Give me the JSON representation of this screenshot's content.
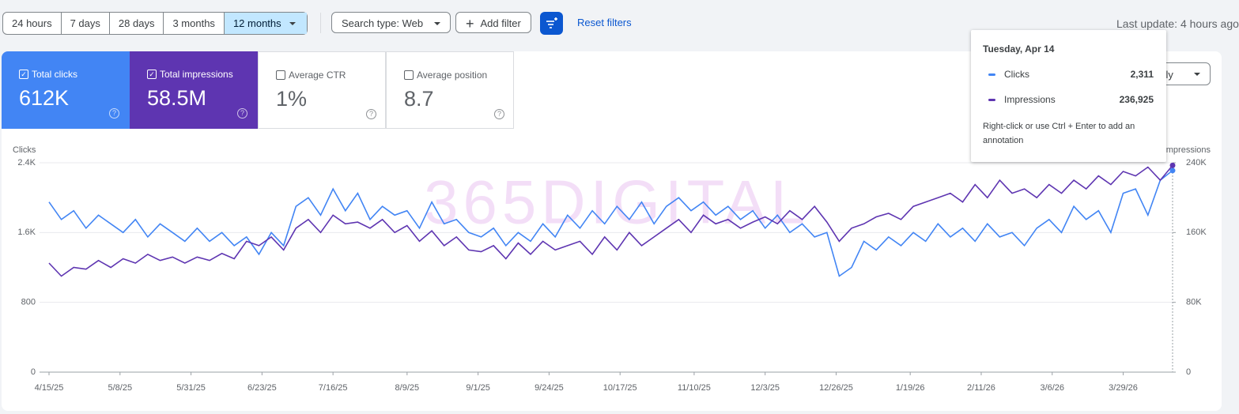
{
  "toolbar": {
    "ranges": [
      "24 hours",
      "7 days",
      "28 days",
      "3 months",
      "12 months"
    ],
    "selected": 4,
    "search_type": "Search type: Web",
    "add_filter": "Add filter",
    "reset": "Reset filters",
    "last_update": "Last update: 4 hours ago"
  },
  "cards": [
    {
      "label": "Total clicks",
      "value": "612K",
      "checked": true
    },
    {
      "label": "Total impressions",
      "value": "58.5M",
      "checked": true
    },
    {
      "label": "Average CTR",
      "value": "1%",
      "checked": false
    },
    {
      "label": "Average position",
      "value": "8.7",
      "checked": false
    }
  ],
  "granularity": "Daily",
  "chart_data": {
    "type": "line",
    "y_label": "Clicks",
    "y2_label": "Impressions",
    "watermark": "365DIGITAL",
    "x": [
      "4/15/25",
      "4/19/25",
      "4/23/25",
      "4/27/25",
      "5/1/25",
      "5/5/25",
      "5/9/25",
      "5/13/25",
      "5/17/25",
      "5/21/25",
      "5/25/25",
      "5/29/25",
      "6/2/25",
      "6/6/25",
      "6/10/25",
      "6/14/25",
      "6/18/25",
      "6/22/25",
      "6/26/25",
      "6/30/25",
      "7/4/25",
      "7/8/25",
      "7/12/25",
      "7/16/25",
      "7/20/25",
      "7/24/25",
      "7/28/25",
      "8/1/25",
      "8/5/25",
      "8/9/25",
      "8/13/25",
      "8/17/25",
      "8/21/25",
      "8/25/25",
      "8/29/25",
      "9/2/25",
      "9/6/25",
      "9/10/25",
      "9/14/25",
      "9/18/25",
      "9/22/25",
      "9/26/25",
      "9/30/25",
      "10/4/25",
      "10/8/25",
      "10/12/25",
      "10/16/25",
      "10/20/25",
      "10/24/25",
      "10/28/25",
      "11/1/25",
      "11/5/25",
      "11/9/25",
      "11/13/25",
      "11/17/25",
      "11/21/25",
      "11/25/25",
      "11/29/25",
      "12/3/25",
      "12/7/25",
      "12/11/25",
      "12/15/25",
      "12/19/25",
      "12/23/25",
      "12/27/25",
      "12/31/25",
      "1/4/26",
      "1/8/26",
      "1/12/26",
      "1/16/26",
      "1/20/26",
      "1/24/26",
      "1/28/26",
      "2/1/26",
      "2/5/26",
      "2/9/26",
      "2/13/26",
      "2/17/26",
      "2/21/26",
      "2/25/26",
      "3/1/26",
      "3/5/26",
      "3/9/26",
      "3/13/26",
      "3/17/26",
      "3/21/26",
      "3/25/26",
      "3/29/26",
      "4/2/26",
      "4/6/26",
      "4/10/26",
      "4/14/26"
    ],
    "xlim": [
      "4/15/25",
      "4/14/26"
    ],
    "xticks": [
      "4/15/25",
      "5/8/25",
      "5/31/25",
      "6/23/25",
      "7/16/25",
      "8/9/25",
      "9/1/25",
      "9/24/25",
      "10/17/25",
      "11/10/25",
      "12/3/25",
      "12/26/25",
      "1/19/26",
      "2/11/26",
      "3/6/26",
      "3/29/26"
    ],
    "ylim": [
      0,
      2400
    ],
    "yticks": [
      0,
      800,
      {
        "value": 1600,
        "label": "1.6K"
      },
      {
        "value": 2400,
        "label": "2.4K"
      }
    ],
    "y2lim": [
      0,
      240000
    ],
    "y2ticks": [
      0,
      {
        "value": 80000,
        "label": "80K"
      },
      {
        "value": 160000,
        "label": "160K"
      },
      {
        "value": 240000,
        "label": "240K"
      }
    ],
    "grid": true,
    "series": [
      {
        "name": "Clicks",
        "color": "#4285f4",
        "values": [
          1950,
          1750,
          1850,
          1650,
          1800,
          1700,
          1600,
          1750,
          1550,
          1700,
          1600,
          1500,
          1650,
          1500,
          1600,
          1450,
          1550,
          1350,
          1600,
          1450,
          1900,
          2000,
          1800,
          2100,
          1850,
          2050,
          1750,
          1900,
          1800,
          1850,
          1650,
          1950,
          1700,
          1750,
          1600,
          1550,
          1650,
          1450,
          1600,
          1500,
          1700,
          1550,
          1800,
          1650,
          1850,
          1700,
          1900,
          1750,
          1950,
          1700,
          1900,
          2000,
          1850,
          1950,
          1800,
          1900,
          1750,
          1850,
          1650,
          1800,
          1600,
          1700,
          1550,
          1600,
          1100,
          1200,
          1500,
          1400,
          1550,
          1450,
          1600,
          1500,
          1700,
          1550,
          1650,
          1500,
          1700,
          1550,
          1600,
          1450,
          1650,
          1750,
          1600,
          1900,
          1750,
          1850,
          1600,
          2050,
          2100,
          1800,
          2200,
          2311
        ]
      },
      {
        "name": "Impressions",
        "color": "#5e35b1",
        "axis": "y2",
        "values": [
          125000,
          110000,
          120000,
          118000,
          128000,
          120000,
          130000,
          125000,
          135000,
          128000,
          132000,
          125000,
          132000,
          128000,
          136000,
          130000,
          150000,
          145000,
          155000,
          140000,
          165000,
          175000,
          160000,
          180000,
          170000,
          172000,
          165000,
          175000,
          160000,
          168000,
          150000,
          162000,
          145000,
          155000,
          140000,
          138000,
          145000,
          130000,
          148000,
          135000,
          150000,
          140000,
          145000,
          150000,
          135000,
          155000,
          140000,
          160000,
          145000,
          155000,
          165000,
          175000,
          160000,
          180000,
          170000,
          175000,
          165000,
          172000,
          178000,
          170000,
          185000,
          175000,
          190000,
          172000,
          150000,
          165000,
          170000,
          178000,
          182000,
          175000,
          190000,
          195000,
          200000,
          205000,
          195000,
          215000,
          200000,
          220000,
          205000,
          210000,
          200000,
          215000,
          205000,
          220000,
          210000,
          225000,
          215000,
          230000,
          225000,
          235000,
          220000,
          236925
        ]
      }
    ],
    "tooltip": {
      "title": "Tuesday, Apr 14",
      "labels": [
        "2,311",
        "236,925"
      ],
      "note": "Right-click or use Ctrl + Enter to add an annotation"
    }
  }
}
